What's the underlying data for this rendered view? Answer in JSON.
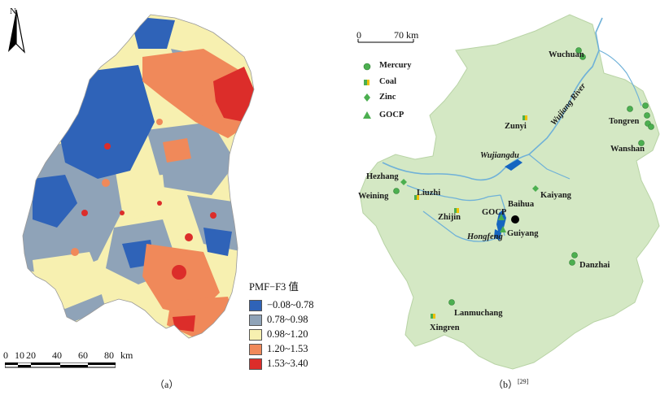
{
  "panel_a": {
    "north_label": "N",
    "legend": {
      "title": "PMF−F3 值",
      "items": [
        {
          "label": "−0.08~0.78",
          "color": "#2f63b8"
        },
        {
          "label": "0.78~0.98",
          "color": "#8fa3b8"
        },
        {
          "label": "0.98~1.20",
          "color": "#f7f0b0"
        },
        {
          "label": "1.20~1.53",
          "color": "#f0895a"
        },
        {
          "label": "1.53~3.40",
          "color": "#dc2d2a"
        }
      ]
    },
    "scale": {
      "ticks": [
        "0",
        "10",
        "20",
        "40",
        "60",
        "80"
      ],
      "unit": "km"
    },
    "caption": "（a）"
  },
  "panel_b": {
    "scale": {
      "start": "0",
      "end": "70 km"
    },
    "legend": [
      {
        "label": "Mercury",
        "icon": "mercury-marker"
      },
      {
        "label": "Coal",
        "icon": "coal-marker"
      },
      {
        "label": "Zinc",
        "icon": "zinc-marker"
      },
      {
        "label": "GOCP",
        "icon": "gocp-marker"
      }
    ],
    "places": {
      "wuchuan": "Wuchuan",
      "tongren": "Tongren",
      "wanshan": "Wanshan",
      "zunyi": "Zunyi",
      "hezhang": "Hezhang",
      "weining": "Weining",
      "liuzhi": "Liuzhi",
      "zhijin": "Zhijin",
      "baihua": "Baihua",
      "gocp": "GOCP",
      "kaiyang": "Kaiyang",
      "guiyang": "Guiyang",
      "danzhai": "Danzhai",
      "lanmuchang": "Lanmuchang",
      "xingren": "Xingren"
    },
    "rivers": {
      "wujiang": "Wujiang River",
      "wujiangdu": "Wujiangdu",
      "hongfeng": "Hongfeng"
    },
    "caption": "（b）",
    "caption_ref": "[29]",
    "colors": {
      "land": "#d4e8c4",
      "river": "#6fb1d8",
      "reservoir": "#1565c0"
    }
  }
}
